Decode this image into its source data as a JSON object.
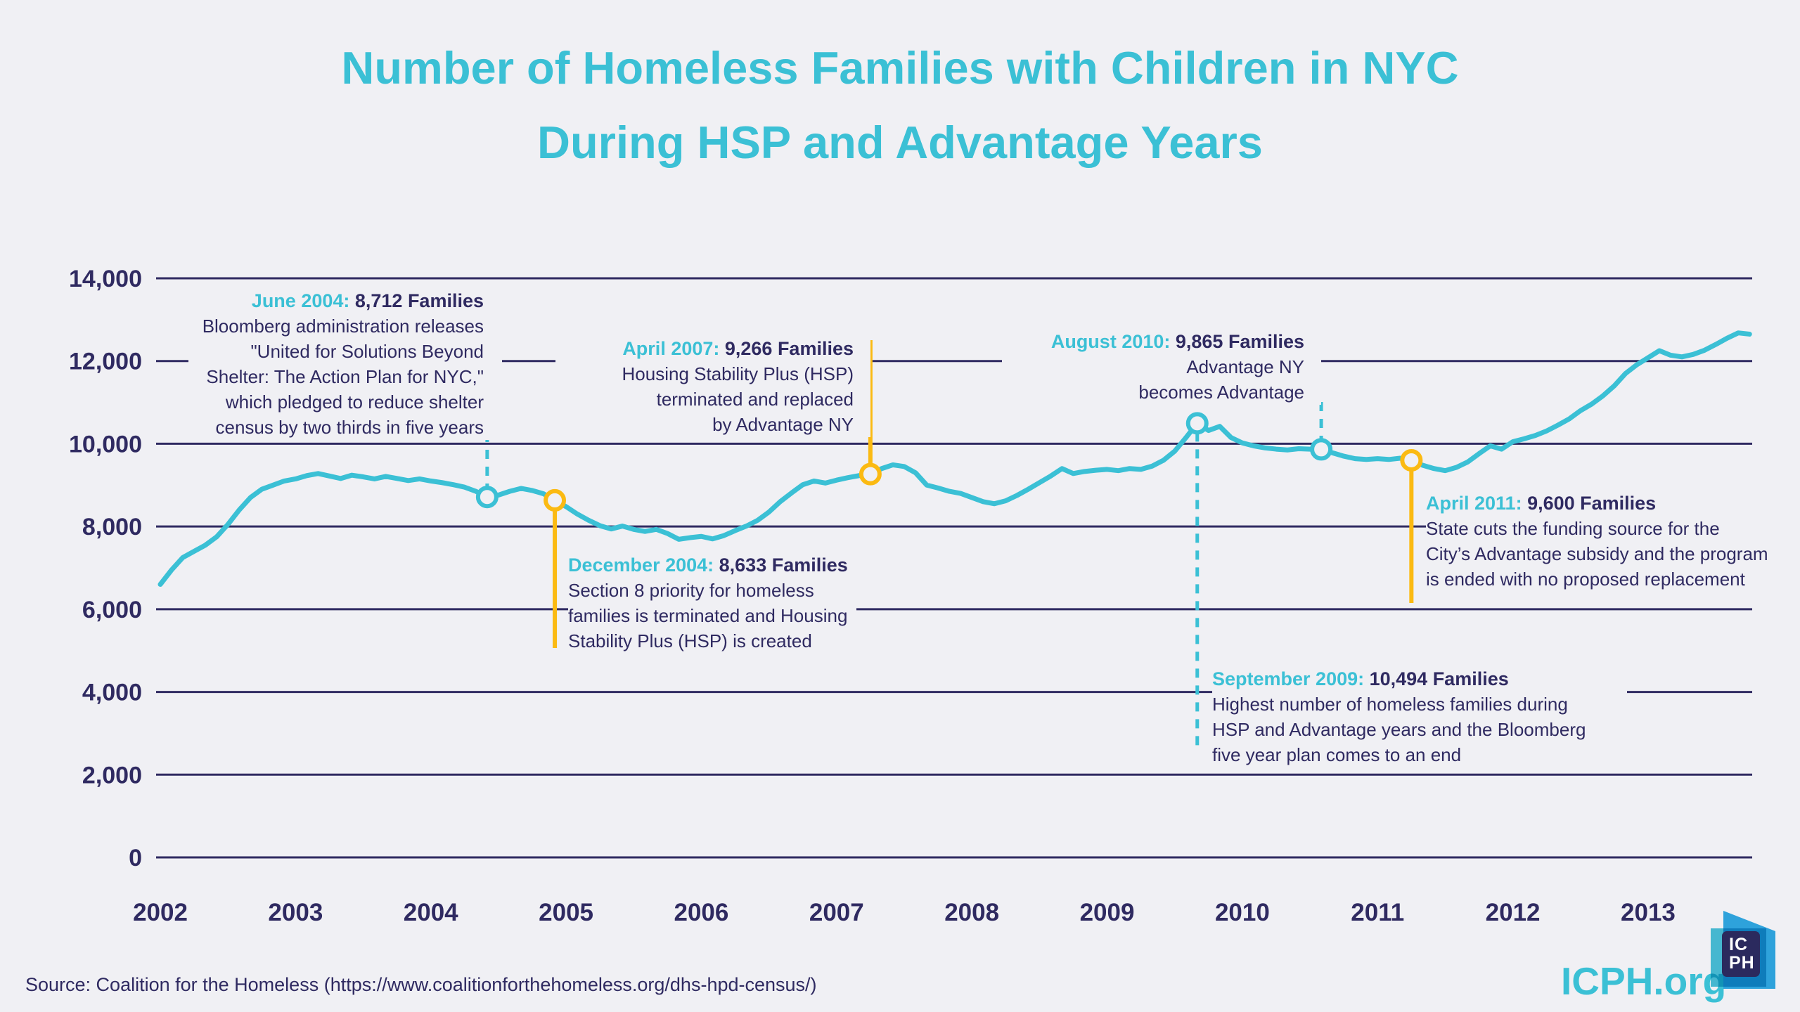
{
  "title": {
    "line1": "Number of Homeless Families with Children in NYC",
    "line2": "During HSP and Advantage Years"
  },
  "colors": {
    "background": "#F0F0F4",
    "teal": "#3BC0D5",
    "navy": "#2F2A61",
    "yellow": "#FBBA12",
    "logo_blue": "#2EA2DB",
    "logo_teal": "#4AC3DA",
    "logo_navy": "#2B2A5E"
  },
  "chart_data": {
    "type": "line",
    "title": "Number of Homeless Families with Children in NYC During HSP and Advantage Years",
    "xlabel": "",
    "ylabel": "",
    "ylim": [
      0,
      14000
    ],
    "grid": "horizontal",
    "legend": "none",
    "y_ticks": [
      {
        "label": "14,000",
        "value": 14000
      },
      {
        "label": "12,000",
        "value": 12000
      },
      {
        "label": "10,000",
        "value": 10000
      },
      {
        "label": "8,000",
        "value": 8000
      },
      {
        "label": "6,000",
        "value": 6000
      },
      {
        "label": "4,000",
        "value": 4000
      },
      {
        "label": "2,000",
        "value": 2000
      },
      {
        "label": "0",
        "value": 0
      }
    ],
    "x_tick_labels": [
      "2002",
      "2003",
      "2004",
      "2005",
      "2006",
      "2007",
      "2008",
      "2009",
      "2010",
      "2011",
      "2012",
      "2013"
    ],
    "x_range_months": "January 2002 through October 2013, monthly",
    "series": [
      {
        "name": "Homeless families with children in NYC shelter",
        "color": "#3BC0D5",
        "monthly_values": [
          6600,
          6950,
          7250,
          7400,
          7550,
          7750,
          8050,
          8400,
          8700,
          8900,
          9000,
          9100,
          9150,
          9230,
          9280,
          9220,
          9160,
          9240,
          9200,
          9150,
          9210,
          9160,
          9110,
          9150,
          9100,
          9060,
          9010,
          8950,
          8850,
          8712,
          8760,
          8850,
          8920,
          8870,
          8790,
          8633,
          8480,
          8300,
          8150,
          8020,
          7940,
          8010,
          7930,
          7880,
          7930,
          7830,
          7690,
          7730,
          7760,
          7700,
          7780,
          7900,
          8010,
          8150,
          8350,
          8600,
          8810,
          9010,
          9100,
          9050,
          9120,
          9180,
          9230,
          9266,
          9400,
          9490,
          9450,
          9300,
          9000,
          8930,
          8850,
          8800,
          8700,
          8600,
          8550,
          8620,
          8750,
          8900,
          9060,
          9220,
          9400,
          9280,
          9330,
          9360,
          9380,
          9350,
          9400,
          9380,
          9460,
          9600,
          9820,
          10150,
          10494,
          10320,
          10420,
          10150,
          10020,
          9950,
          9900,
          9870,
          9850,
          9880,
          9870,
          9865,
          9780,
          9700,
          9640,
          9620,
          9640,
          9620,
          9650,
          9600,
          9480,
          9400,
          9350,
          9430,
          9560,
          9760,
          9950,
          9870,
          10050,
          10120,
          10200,
          10310,
          10450,
          10600,
          10800,
          10960,
          11160,
          11400,
          11700,
          11910,
          12080,
          12250,
          12140,
          12100,
          12160,
          12260,
          12400,
          12550,
          12680,
          12650
        ]
      }
    ],
    "annotations": [
      {
        "id": "jun2004",
        "date": "June 2004:",
        "value_label": "8,712 Families",
        "value": 8712,
        "month_index": 29,
        "marker_style": "teal-dashed",
        "body_lines": [
          "Bloomberg administration releases",
          "\"United for Solutions Beyond",
          "Shelter: The Action Plan for NYC,\"",
          "which pledged to reduce shelter",
          "census by two thirds in five years"
        ]
      },
      {
        "id": "dec2004",
        "date": "December 2004:",
        "value_label": "8,633 Families",
        "value": 8633,
        "month_index": 35,
        "marker_style": "yellow-solid",
        "body_lines": [
          "Section 8 priority for homeless",
          "families is terminated and Housing",
          "Stability Plus (HSP) is created"
        ]
      },
      {
        "id": "apr2007",
        "date": "April 2007:",
        "value_label": "9,266 Families",
        "value": 9266,
        "month_index": 63,
        "marker_style": "yellow-solid",
        "body_lines": [
          "Housing Stability Plus (HSP)",
          "terminated and replaced",
          "by Advantage NY"
        ]
      },
      {
        "id": "sep2009",
        "date": "September 2009:",
        "value_label": "10,494 Families",
        "value": 10494,
        "month_index": 92,
        "marker_style": "teal-dashed",
        "body_lines": [
          "Highest number of homeless families during",
          "HSP and Advantage years and the Bloomberg",
          "five year plan comes to an end"
        ]
      },
      {
        "id": "aug2010",
        "date": "August 2010:",
        "value_label": "9,865 Families",
        "value": 9865,
        "month_index": 103,
        "marker_style": "teal-dashed",
        "body_lines": [
          "Advantage NY",
          "becomes Advantage"
        ]
      },
      {
        "id": "apr2011",
        "date": "April 2011:",
        "value_label": "9,600 Families",
        "value": 9600,
        "month_index": 111,
        "marker_style": "yellow-solid",
        "body_lines": [
          "State cuts the funding source for the",
          "City’s Advantage subsidy and the program",
          "is ended with no proposed replacement"
        ]
      }
    ]
  },
  "footer": {
    "source": "Source: Coalition for the Homeless (https://www.coalitionforthehomeless.org/dhs-hpd-census/)",
    "logo_text": "ICPH.org",
    "logo_monogram_line1": "IC",
    "logo_monogram_line2": "PH"
  }
}
